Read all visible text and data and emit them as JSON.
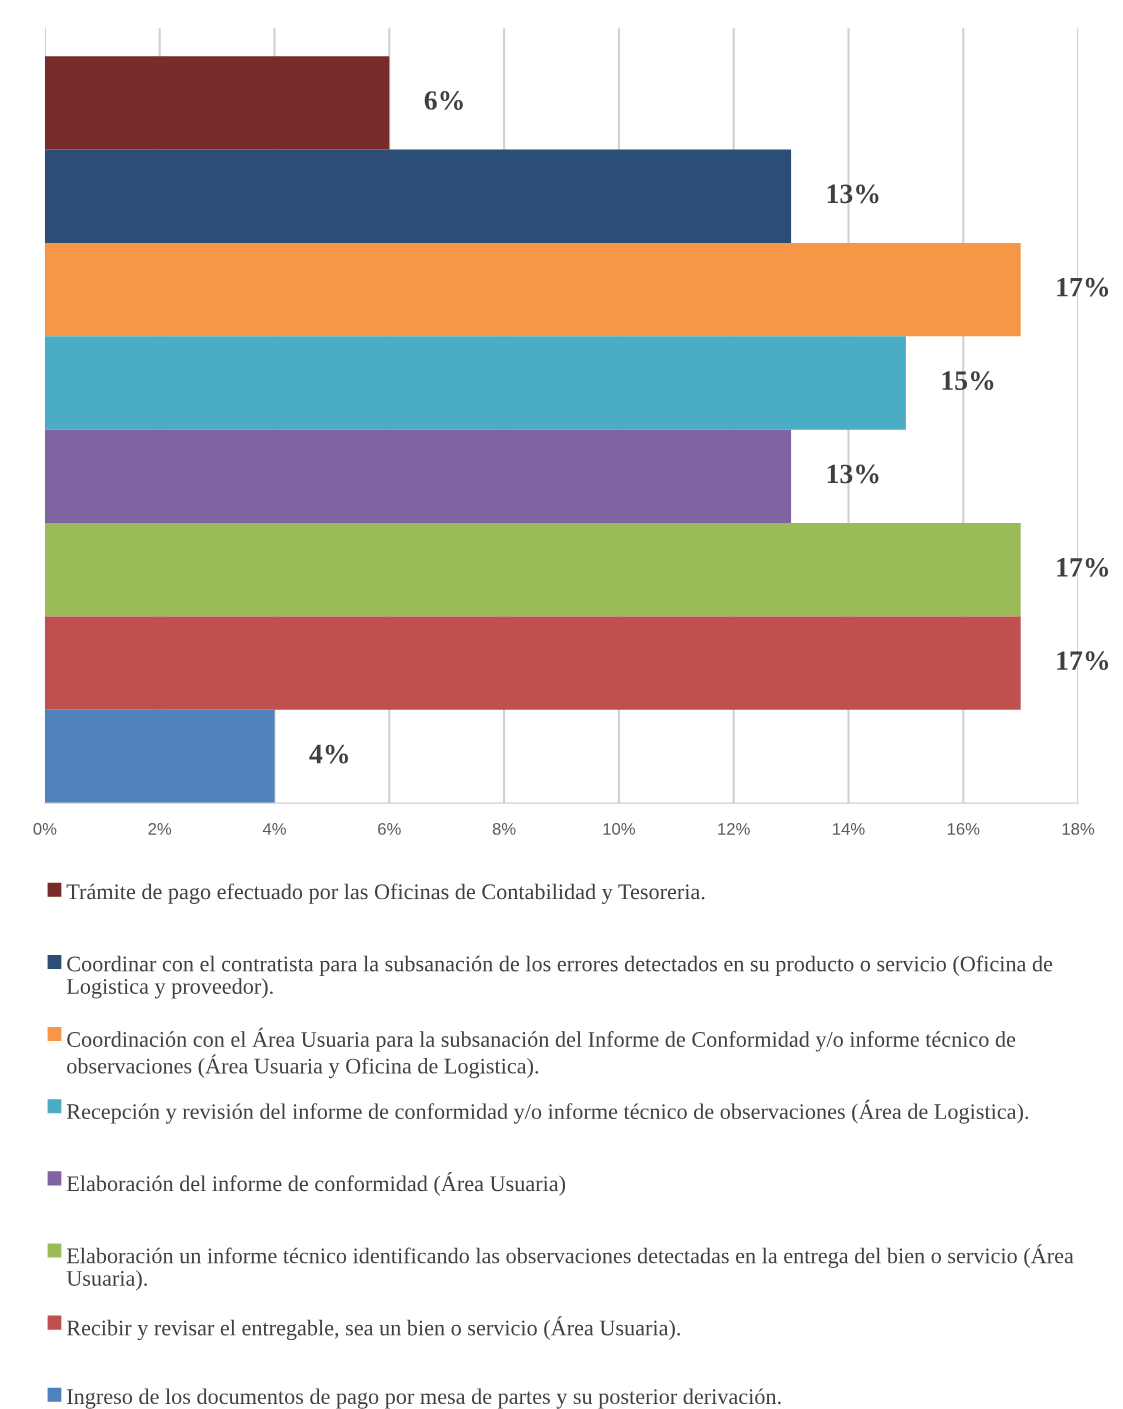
{
  "chart_data": {
    "type": "bar",
    "orientation": "horizontal",
    "categories": [
      null
    ],
    "series": [
      {
        "name": "Trámite de pago efectuado por las Oficinas de Contabilidad y Tesoreria.",
        "color": "#772c2a",
        "values": [
          6
        ]
      },
      {
        "name": "Coordinar con el contratista para la subsanación de los errores detectados en su producto o servicio (Oficina de Logistica y proveedor).",
        "color": "#2c4d75",
        "values": [
          13
        ]
      },
      {
        "name": "Coordinación con el Área Usuaria para la subsanación del Informe de Conformidad y/o informe técnico de observaciones (Área Usuaria y Oficina de Logistica).",
        "color": "#f79646",
        "values": [
          17
        ]
      },
      {
        "name": "Recepción y revisión del informe de conformidad y/o informe técnico de observaciones (Área de Logistica).",
        "color": "#4bacc6",
        "values": [
          15
        ]
      },
      {
        "name": "Elaboración del informe de conformidad (Área Usuaria)",
        "color": "#8064a2",
        "values": [
          13
        ]
      },
      {
        "name": "Elaboración un informe técnico identificando las observaciones detectadas en la entrega del bien o servicio (Área Usuaria).",
        "color": "#9bbb59",
        "values": [
          17
        ]
      },
      {
        "name": "Recibir y revisar el entregable, sea un bien o servicio (Área Usuaria).",
        "color": "#c0504d",
        "values": [
          17
        ]
      },
      {
        "name": "Ingreso de los documentos de pago por mesa de partes y su posterior derivación.",
        "color": "#4f81bd",
        "values": [
          4
        ]
      }
    ],
    "xlim": [
      0,
      18
    ],
    "xticks": [
      {
        "value": 0,
        "label": "0%"
      },
      {
        "value": 2,
        "label": "2%"
      },
      {
        "value": 4,
        "label": "4%"
      },
      {
        "value": 6,
        "label": "6%"
      },
      {
        "value": 8,
        "label": "8%"
      },
      {
        "value": 10,
        "label": "10%"
      },
      {
        "value": 12,
        "label": "12%"
      },
      {
        "value": 14,
        "label": "14%"
      },
      {
        "value": 16,
        "label": "16%"
      },
      {
        "value": 18,
        "label": "18%"
      }
    ],
    "value_labels": [
      "6%",
      "13%",
      "17%",
      "15%",
      "13%",
      "17%",
      "17%",
      "4%"
    ],
    "grid": "x",
    "legend": "bottom"
  }
}
